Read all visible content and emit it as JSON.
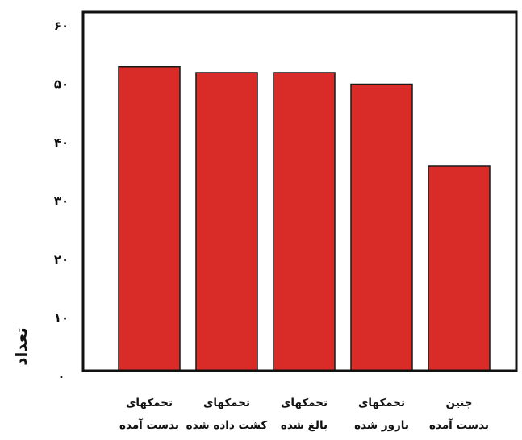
{
  "chart_data": {
    "type": "bar",
    "title": "",
    "xlabel": "",
    "ylabel": "تعداد",
    "ylim": [
      0,
      60
    ],
    "yticks": [
      {
        "value": 0,
        "label": "٠"
      },
      {
        "value": 10,
        "label": "١٠"
      },
      {
        "value": 20,
        "label": "٢٠"
      },
      {
        "value": 30,
        "label": "٣٠"
      },
      {
        "value": 40,
        "label": "۴٠"
      },
      {
        "value": 50,
        "label": "۵٠"
      },
      {
        "value": 60,
        "label": "۶٠"
      }
    ],
    "categories": [
      {
        "line1": "تخمکهای",
        "line2": "بدست آمده"
      },
      {
        "line1": "تخمکهای",
        "line2": "کشت داده شده"
      },
      {
        "line1": "تخمکهای",
        "line2": "بالغ شده"
      },
      {
        "line1": "تخمکهای",
        "line2": "بارور شده"
      },
      {
        "line1": "جنین",
        "line2": "بدست آمده"
      }
    ],
    "values": [
      53,
      52,
      52,
      50,
      36
    ],
    "grid": false,
    "legend": "none",
    "bar_color": "#d92b27",
    "bar_edge_color": "#1a1a1a"
  }
}
